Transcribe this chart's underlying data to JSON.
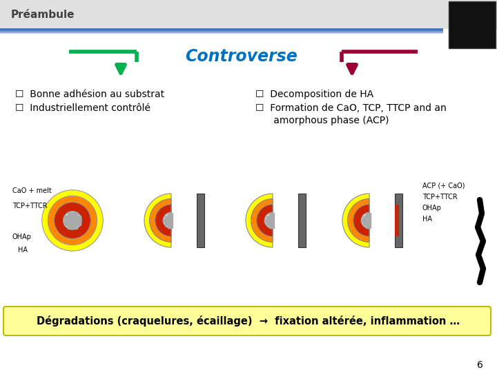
{
  "bg_color": "#ffffff",
  "header_text": "Préambule",
  "header_color": "#404040",
  "title_text": "Controverse",
  "title_color": "#0070c0",
  "left_bullets": [
    "☐  Bonne adhésion au substrat",
    "☐  Industriellement contrôlé"
  ],
  "right_bullet1": "☐  Decomposition de HA",
  "right_bullet2": "☐  Formation de CaO, TCP, TTCP and an",
  "right_bullet2b": "      amorphous phase (ACP)",
  "bottom_text": "Dégradations (craquelures, écaillage)  →  fixation altérée, inflammation …",
  "bottom_bg": "#ffff99",
  "page_num": "6",
  "arrow_left_color": "#00b050",
  "arrow_right_color": "#9b0035",
  "blue_line_color": "#4472c4",
  "diag_label_cao": "CaO + melt",
  "diag_label_tcp": "TCP+TTCR",
  "diag_label_ohap": "OHAp",
  "diag_label_ha": "HA",
  "diag_label_acp": "ACP (+ CaO)",
  "diag_label_tcp2": "TCP+TTCR",
  "diag_label_ohap2": "OHAp",
  "diag_label_ha2": "HA",
  "col_yellow": "#ffff00",
  "col_orange": "#ff8800",
  "col_red": "#cc2200",
  "col_gray_plate": "#666666",
  "col_center": "#d0d0d0",
  "col_dot": "#aaaaaa"
}
